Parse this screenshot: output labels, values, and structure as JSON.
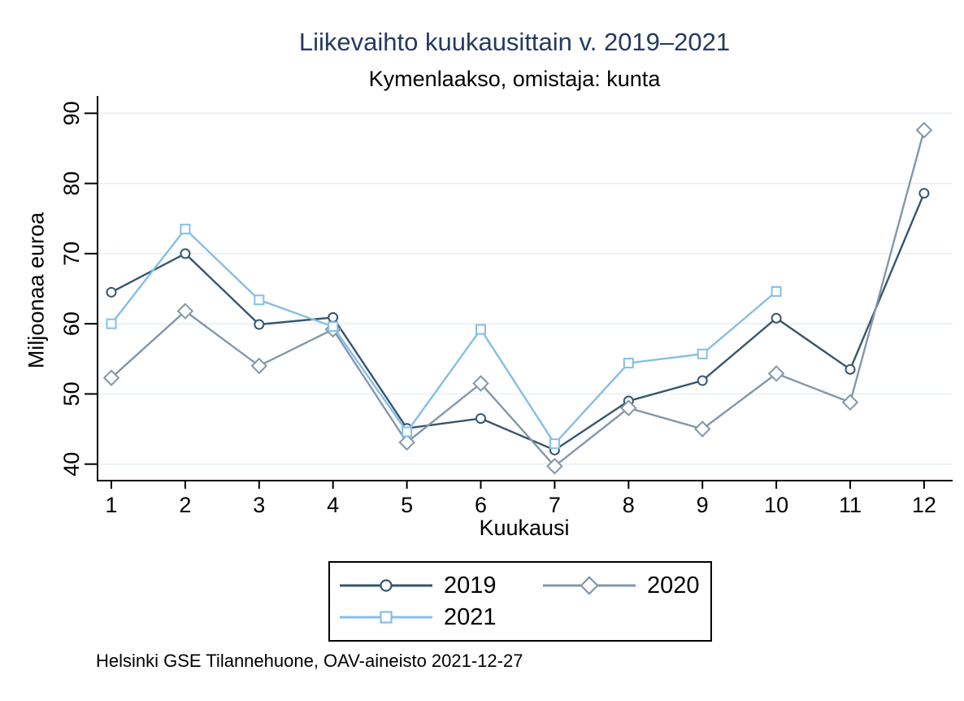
{
  "title": "Liikevaihto kuukausittain v. 2019–2021",
  "subtitle": "Kymenlaakso, omistaja: kunta",
  "source_note": "Helsinki GSE Tilannehuone, OAV-aineisto 2021-12-27",
  "colors": {
    "title_text": "#243a61",
    "body_text": "#000000",
    "grid": "#e7f0f6",
    "axis": "#000000",
    "background": "#ffffff",
    "series_2019": "#36566e",
    "series_2020": "#8397a9",
    "series_2021": "#85bfe5"
  },
  "chart_data": {
    "type": "line",
    "title": "Liikevaihto kuukausittain v. 2019–2021",
    "subtitle": "Kymenlaakso, omistaja: kunta",
    "xlabel": "Kuukausi",
    "ylabel": "Miljoonaa euroa",
    "x": [
      1,
      2,
      3,
      4,
      5,
      6,
      7,
      8,
      9,
      10,
      11,
      12
    ],
    "xticks": [
      1,
      2,
      3,
      4,
      5,
      6,
      7,
      8,
      9,
      10,
      11,
      12
    ],
    "yticks": [
      40,
      50,
      60,
      70,
      80,
      90
    ],
    "xlim": [
      0.74,
      12.4
    ],
    "ylim": [
      37.5,
      92.2
    ],
    "grid": "horizontal",
    "legend_position": "below-plot-center",
    "series": [
      {
        "name": "2019",
        "marker": "circle",
        "color": "#36566e",
        "values": [
          64.5,
          70.0,
          59.9,
          60.9,
          45.1,
          46.5,
          42.0,
          49.0,
          51.9,
          60.8,
          53.5,
          78.6
        ]
      },
      {
        "name": "2020",
        "marker": "diamond",
        "color": "#8397a9",
        "values": [
          52.3,
          61.8,
          54.0,
          59.2,
          43.1,
          51.5,
          39.7,
          48.0,
          45.0,
          52.9,
          48.8,
          87.6
        ]
      },
      {
        "name": "2021",
        "marker": "square",
        "color": "#85bfe5",
        "values": [
          60.0,
          73.5,
          63.4,
          59.6,
          44.6,
          59.2,
          42.9,
          54.4,
          55.7,
          64.6,
          null,
          null
        ]
      }
    ]
  }
}
